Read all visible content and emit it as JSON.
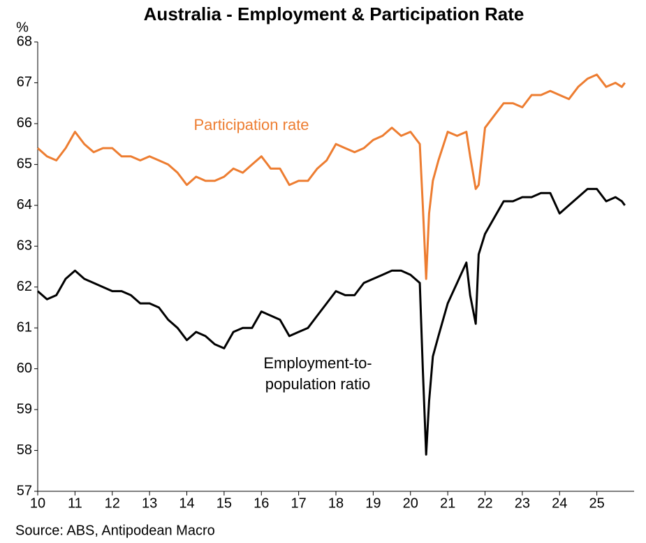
{
  "chart_data": {
    "type": "line",
    "title": "Australia - Employment & Participation Rate",
    "y_label": "%",
    "source": "Source: ABS, Antipodean Macro",
    "annotations": {
      "participation": [
        "Participation rate"
      ],
      "employment": [
        "Employment-to-",
        "population ratio"
      ]
    },
    "x": [
      10,
      10.25,
      10.5,
      10.75,
      11,
      11.25,
      11.5,
      11.75,
      12,
      12.25,
      12.5,
      12.75,
      13,
      13.25,
      13.5,
      13.75,
      14,
      14.25,
      14.5,
      14.75,
      15,
      15.25,
      15.5,
      15.75,
      16,
      16.25,
      16.5,
      16.75,
      17,
      17.25,
      17.5,
      17.75,
      18,
      18.25,
      18.5,
      18.75,
      19,
      19.25,
      19.5,
      19.75,
      20,
      20.25,
      20.33,
      20.42,
      20.5,
      20.6,
      20.75,
      21,
      21.25,
      21.5,
      21.6,
      21.75,
      21.83,
      22,
      22.25,
      22.5,
      22.75,
      23,
      23.25,
      23.5,
      23.75,
      24,
      24.25,
      24.5,
      24.75,
      25,
      25.25,
      25.5,
      25.67,
      25.75
    ],
    "series": [
      {
        "name": "Participation rate",
        "color": "#ed7d31",
        "values": [
          65.4,
          65.2,
          65.1,
          65.4,
          65.8,
          65.5,
          65.3,
          65.4,
          65.4,
          65.2,
          65.2,
          65.1,
          65.2,
          65.1,
          65.0,
          64.8,
          64.5,
          64.7,
          64.6,
          64.6,
          64.7,
          64.9,
          64.8,
          65.0,
          65.2,
          64.9,
          64.9,
          64.5,
          64.6,
          64.6,
          64.9,
          65.1,
          65.5,
          65.4,
          65.3,
          65.4,
          65.6,
          65.7,
          65.9,
          65.7,
          65.8,
          65.5,
          64.0,
          62.2,
          63.8,
          64.6,
          65.1,
          65.8,
          65.7,
          65.8,
          65.2,
          64.4,
          64.5,
          65.9,
          66.2,
          66.5,
          66.5,
          66.4,
          66.7,
          66.7,
          66.8,
          66.7,
          66.6,
          66.9,
          67.1,
          67.2,
          66.9,
          67.0,
          66.9,
          67.0
        ]
      },
      {
        "name": "Employment-to-population ratio",
        "color": "#000000",
        "values": [
          61.9,
          61.7,
          61.8,
          62.2,
          62.4,
          62.2,
          62.1,
          62.0,
          61.9,
          61.9,
          61.8,
          61.6,
          61.6,
          61.5,
          61.2,
          61.0,
          60.7,
          60.9,
          60.8,
          60.6,
          60.5,
          60.9,
          61.0,
          61.0,
          61.4,
          61.3,
          61.2,
          60.8,
          60.9,
          61.0,
          61.3,
          61.6,
          61.9,
          61.8,
          61.8,
          62.1,
          62.2,
          62.3,
          62.4,
          62.4,
          62.3,
          62.1,
          60.0,
          57.9,
          59.2,
          60.3,
          60.8,
          61.6,
          62.1,
          62.6,
          61.8,
          61.1,
          62.8,
          63.3,
          63.7,
          64.1,
          64.1,
          64.2,
          64.2,
          64.3,
          64.3,
          63.8,
          64.0,
          64.2,
          64.4,
          64.4,
          64.1,
          64.2,
          64.1,
          64.0
        ]
      }
    ],
    "xlim": [
      10,
      26
    ],
    "xticks": [
      10,
      11,
      12,
      13,
      14,
      15,
      16,
      17,
      18,
      19,
      20,
      21,
      22,
      23,
      24,
      25
    ],
    "ylim": [
      57,
      68
    ],
    "yticks": [
      57,
      58,
      59,
      60,
      61,
      62,
      63,
      64,
      65,
      66,
      67,
      68
    ],
    "grid": false
  }
}
